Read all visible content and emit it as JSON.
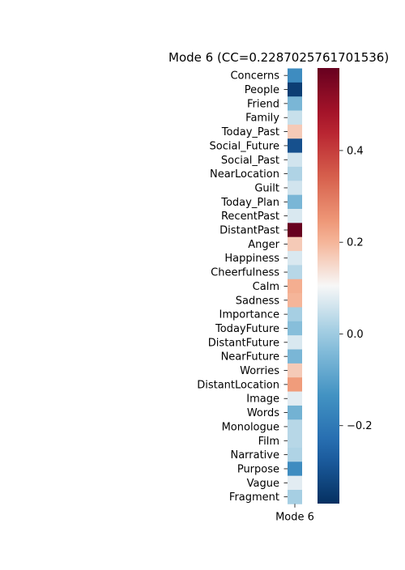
{
  "chart_data": {
    "type": "heatmap",
    "title": "Mode 6 (CC=0.2287025761701536)",
    "x_categories": [
      "Mode 6"
    ],
    "y_categories": [
      "Concerns",
      "People",
      "Friend",
      "Family",
      "Today_Past",
      "Social_Future",
      "Social_Past",
      "NearLocation",
      "Guilt",
      "Today_Plan",
      "RecentPast",
      "DistantPast",
      "Anger",
      "Happiness",
      "Cheerfulness",
      "Calm",
      "Sadness",
      "Importance",
      "TodayFuture",
      "DistantFuture",
      "NearFuture",
      "Worries",
      "DistantLocation",
      "Image",
      "Words",
      "Monologue",
      "Film",
      "Narrative",
      "Purpose",
      "Vague",
      "Fragment"
    ],
    "values": [
      -0.15,
      -0.34,
      -0.05,
      0.05,
      0.17,
      -0.3,
      0.06,
      0.02,
      0.06,
      -0.05,
      0.07,
      0.58,
      0.17,
      0.07,
      0.03,
      0.21,
      0.2,
      0.01,
      -0.03,
      0.07,
      -0.05,
      0.17,
      0.24,
      0.08,
      -0.06,
      0.03,
      0.03,
      0.02,
      -0.15,
      0.08,
      0.01
    ],
    "colormap": "RdBu_r",
    "vmin": -0.37,
    "vmax": 0.58,
    "colorbar_ticks": [
      0.4,
      0.2,
      0.0,
      -0.2
    ],
    "colorbar_tick_labels": [
      "0.4",
      "0.2",
      "0.0",
      "−0.2"
    ],
    "legend": "colorbar-right"
  }
}
